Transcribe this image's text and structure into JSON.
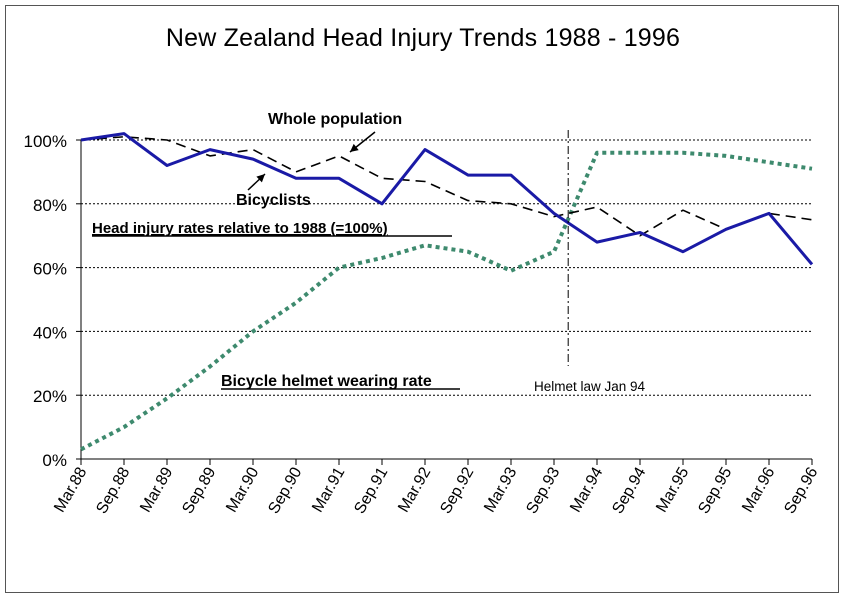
{
  "chart_data": {
    "type": "line",
    "title": "New Zealand Head Injury Trends 1988 - 1996",
    "x": [
      "Mar.88",
      "Sep.88",
      "Mar.89",
      "Sep.89",
      "Mar.90",
      "Sep.90",
      "Mar.91",
      "Sep.91",
      "Mar.92",
      "Sep.92",
      "Mar.93",
      "Sep.93",
      "Mar.94",
      "Sep.94",
      "Mar.95",
      "Sep.95",
      "Mar.96",
      "Sep.96"
    ],
    "ylim": [
      0,
      100
    ],
    "y_ticks": [
      "0%",
      "20%",
      "40%",
      "60%",
      "80%",
      "100%"
    ],
    "grid": true,
    "series": [
      {
        "name": "Bicyclists",
        "style": "solid",
        "color": "#1a1aa6",
        "values": [
          100,
          102,
          92,
          97,
          94,
          88,
          88,
          80,
          97,
          89,
          89,
          77,
          68,
          71,
          65,
          72,
          77,
          61
        ]
      },
      {
        "name": "Whole population",
        "style": "dashed",
        "color": "#000000",
        "values": [
          100,
          101,
          100,
          95,
          97,
          90,
          95,
          88,
          87,
          81,
          80,
          76,
          79,
          70,
          78,
          72,
          77,
          75
        ]
      },
      {
        "name": "Bicycle helmet wearing rate",
        "style": "dotted",
        "color": "#3e8a6e",
        "values": [
          3,
          10,
          19,
          29,
          40,
          49,
          60,
          63,
          67,
          65,
          59,
          65,
          96,
          96,
          96,
          95,
          93,
          91
        ]
      }
    ],
    "annotations": {
      "whole_population": "Whole population",
      "bicyclists": "Bicyclists",
      "relative_note": "Head injury rates relative to 1988 (=100%)",
      "helmet_rate": "Bicycle helmet wearing rate",
      "helmet_law": "Helmet law Jan 94"
    },
    "event_line_x": 11.33
  }
}
